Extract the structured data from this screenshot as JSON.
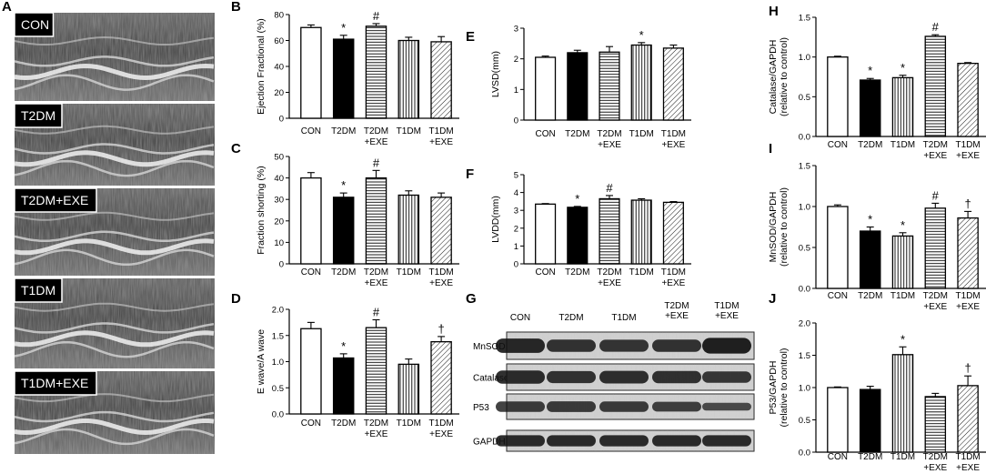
{
  "panel_letters": {
    "A": "A",
    "B": "B",
    "C": "C",
    "D": "D",
    "E": "E",
    "F": "F",
    "G": "G",
    "H": "H",
    "I": "I",
    "J": "J"
  },
  "echo_panels": [
    "CON",
    "T2DM",
    "T2DM+EXE",
    "T1DM",
    "T1DM+EXE"
  ],
  "chart_data": [
    {
      "id": "B",
      "type": "bar",
      "ylabel": "Ejection Fractional (%)",
      "ylim": [
        0,
        80
      ],
      "yticks": [
        0,
        20,
        40,
        60,
        80
      ],
      "categories": [
        [
          "CON"
        ],
        [
          "T2DM"
        ],
        [
          "T2DM",
          "+EXE"
        ],
        [
          "T1DM"
        ],
        [
          "T1DM",
          "+EXE"
        ]
      ],
      "values": [
        70,
        61,
        71,
        60,
        59
      ],
      "errors": [
        2,
        3,
        2,
        2.5,
        4
      ],
      "marks": [
        "",
        "*",
        "#",
        "",
        ""
      ],
      "patterns": [
        "white",
        "black",
        "hstripe",
        "vstripe",
        "dstripe"
      ]
    },
    {
      "id": "C",
      "type": "bar",
      "ylabel": "Fraction shorting (%)",
      "ylim": [
        0,
        50
      ],
      "yticks": [
        0,
        10,
        20,
        30,
        40,
        50
      ],
      "categories": [
        [
          "CON"
        ],
        [
          "T2DM"
        ],
        [
          "T2DM",
          "+EXE"
        ],
        [
          "T1DM"
        ],
        [
          "T1DM",
          "+EXE"
        ]
      ],
      "values": [
        40,
        31,
        40,
        32,
        31
      ],
      "errors": [
        2.5,
        2,
        3.5,
        2,
        2
      ],
      "marks": [
        "",
        "*",
        "#",
        "",
        ""
      ],
      "patterns": [
        "white",
        "black",
        "hstripe",
        "vstripe",
        "dstripe"
      ]
    },
    {
      "id": "D",
      "type": "bar",
      "ylabel": "E wave/A wave",
      "ylim": [
        0,
        2.0
      ],
      "yticks": [
        "0.0",
        "0.5",
        "1.0",
        "1.5",
        "2.0"
      ],
      "categories": [
        [
          "CON"
        ],
        [
          "T2DM"
        ],
        [
          "T2DM",
          "+EXE"
        ],
        [
          "T1DM"
        ],
        [
          "T1DM",
          "+EXE"
        ]
      ],
      "values": [
        1.63,
        1.07,
        1.65,
        0.95,
        1.38
      ],
      "errors": [
        0.12,
        0.08,
        0.15,
        0.1,
        0.1
      ],
      "marks": [
        "",
        "*",
        "#",
        "",
        "†"
      ],
      "patterns": [
        "white",
        "black",
        "hstripe",
        "vstripe",
        "dstripe"
      ]
    },
    {
      "id": "E",
      "type": "bar",
      "ylabel": "LVSD(mm)",
      "ylim": [
        0,
        3
      ],
      "yticks": [
        0,
        1,
        2,
        3
      ],
      "categories": [
        [
          "CON"
        ],
        [
          "T2DM"
        ],
        [
          "T2DM",
          "+EXE"
        ],
        [
          "T1DM"
        ],
        [
          "T1DM",
          "+EXE"
        ]
      ],
      "values": [
        2.05,
        2.2,
        2.22,
        2.45,
        2.35
      ],
      "errors": [
        0.04,
        0.08,
        0.18,
        0.08,
        0.1
      ],
      "marks": [
        "",
        "",
        "",
        "*",
        ""
      ],
      "patterns": [
        "white",
        "black",
        "hstripe",
        "vstripe",
        "dstripe"
      ]
    },
    {
      "id": "F",
      "type": "bar",
      "ylabel": "LVDD(mm)",
      "ylim": [
        0,
        5
      ],
      "yticks": [
        0,
        1,
        2,
        3,
        4,
        5
      ],
      "categories": [
        [
          "CON"
        ],
        [
          "T2DM"
        ],
        [
          "T2DM",
          "+EXE"
        ],
        [
          "T1DM"
        ],
        [
          "T1DM",
          "+EXE"
        ]
      ],
      "values": [
        3.35,
        3.17,
        3.65,
        3.57,
        3.45
      ],
      "errors": [
        0.03,
        0.05,
        0.18,
        0.08,
        0.04
      ],
      "marks": [
        "",
        "*",
        "#",
        "",
        ""
      ],
      "patterns": [
        "white",
        "black",
        "hstripe",
        "vstripe",
        "dstripe"
      ]
    },
    {
      "id": "H",
      "type": "bar",
      "ylabel": [
        "Catalase/GAPDH",
        "(relative to control)"
      ],
      "ylim": [
        0,
        1.5
      ],
      "yticks": [
        "0.0",
        "0.5",
        "1.0",
        "1.5"
      ],
      "categories": [
        [
          "CON"
        ],
        [
          "T2DM"
        ],
        [
          "T1DM"
        ],
        [
          "T2DM",
          "+EXE"
        ],
        [
          "T1DM",
          "+EXE"
        ]
      ],
      "values": [
        1.0,
        0.71,
        0.74,
        1.26,
        0.92
      ],
      "errors": [
        0.01,
        0.02,
        0.03,
        0.02,
        0.01
      ],
      "marks": [
        "",
        "*",
        "*",
        "#",
        ""
      ],
      "patterns": [
        "white",
        "black",
        "vstripe",
        "hstripe",
        "dstripe"
      ]
    },
    {
      "id": "I",
      "type": "bar",
      "ylabel": [
        "MnSOD/GAPDH",
        "(relative to control)"
      ],
      "ylim": [
        0,
        1.5
      ],
      "yticks": [
        "0.0",
        "0.5",
        "1.0",
        "1.5"
      ],
      "categories": [
        [
          "CON"
        ],
        [
          "T2DM"
        ],
        [
          "T1DM"
        ],
        [
          "T2DM",
          "+EXE"
        ],
        [
          "T1DM",
          "+EXE"
        ]
      ],
      "values": [
        1.0,
        0.7,
        0.64,
        0.98,
        0.86
      ],
      "errors": [
        0.02,
        0.05,
        0.04,
        0.06,
        0.08
      ],
      "marks": [
        "",
        "*",
        "*",
        "#",
        "†"
      ],
      "patterns": [
        "white",
        "black",
        "vstripe",
        "hstripe",
        "dstripe"
      ]
    },
    {
      "id": "J",
      "type": "bar",
      "ylabel": [
        "P53/GAPDH",
        "(relative to control)"
      ],
      "ylim": [
        0,
        2.0
      ],
      "yticks": [
        "0.0",
        "0.5",
        "1.0",
        "1.5",
        "2.0"
      ],
      "categories": [
        [
          "CON"
        ],
        [
          "T2DM"
        ],
        [
          "T1DM"
        ],
        [
          "T2DM",
          "+EXE"
        ],
        [
          "T1DM",
          "+EXE"
        ]
      ],
      "values": [
        1.0,
        0.97,
        1.51,
        0.86,
        1.03
      ],
      "errors": [
        0.01,
        0.05,
        0.12,
        0.05,
        0.15
      ],
      "marks": [
        "",
        "",
        "*",
        "",
        "†"
      ],
      "patterns": [
        "white",
        "black",
        "vstripe",
        "hstripe",
        "dstripe"
      ]
    }
  ],
  "blot": {
    "columns": [
      [
        "CON"
      ],
      [
        "T2DM"
      ],
      [
        "T1DM"
      ],
      [
        "T2DM",
        "+EXE"
      ],
      [
        "T1DM",
        "+EXE"
      ]
    ],
    "rows": [
      "MnSOD",
      "Catalase",
      "P53",
      "GAPDH"
    ]
  }
}
